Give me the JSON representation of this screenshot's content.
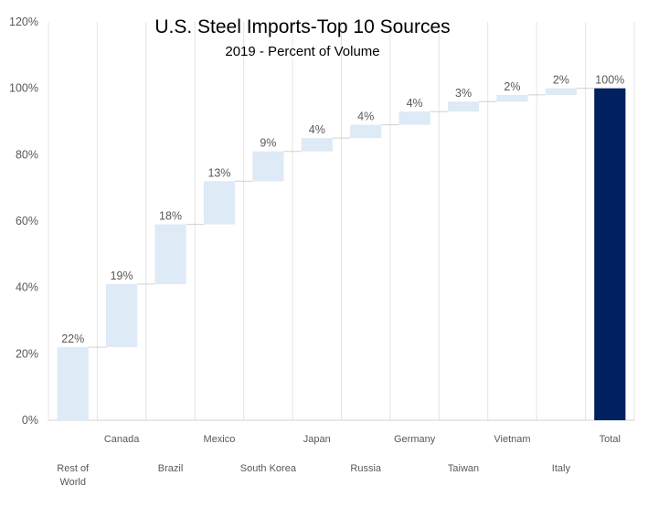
{
  "chart_data": {
    "type": "bar",
    "subtype": "waterfall",
    "title": "U.S. Steel Imports-Top 10 Sources",
    "subtitle": "2019 - Percent of Volume",
    "xlabel": "",
    "ylabel": "",
    "ylim": [
      0,
      120
    ],
    "yticks": [
      0,
      20,
      40,
      60,
      80,
      100,
      120
    ],
    "ytick_labels": [
      "0%",
      "20%",
      "40%",
      "60%",
      "80%",
      "100%",
      "120%"
    ],
    "grid": "vertical",
    "legend": "none",
    "categories": [
      "Rest of World",
      "Canada",
      "Brazil",
      "Mexico",
      "South Korea",
      "Japan",
      "Russia",
      "Germany",
      "Taiwan",
      "Vietnam",
      "Italy",
      "Total"
    ],
    "category_label_rows": [
      1,
      0,
      1,
      0,
      1,
      0,
      1,
      0,
      1,
      0,
      1,
      0
    ],
    "values": [
      22,
      19,
      18,
      13,
      9,
      4,
      4,
      4,
      3,
      2,
      2,
      100
    ],
    "data_labels": [
      "22%",
      "19%",
      "18%",
      "13%",
      "9%",
      "4%",
      "4%",
      "4%",
      "3%",
      "2%",
      "2%",
      "100%"
    ],
    "is_total": [
      false,
      false,
      false,
      false,
      false,
      false,
      false,
      false,
      false,
      false,
      false,
      true
    ],
    "colors": {
      "increment": "#DEEAF6",
      "total": "#002060",
      "connector": "#D0D0D0",
      "gridline": "#E4E4E4",
      "text": "#595959"
    }
  }
}
